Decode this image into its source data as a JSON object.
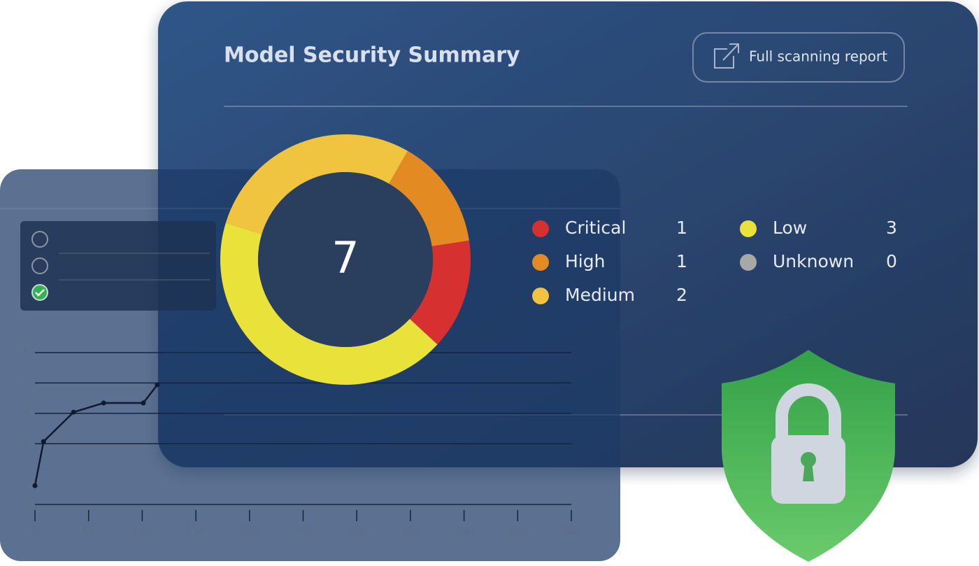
{
  "card": {
    "title": "Model Security Summary",
    "button": "Full scanning report",
    "total": 7,
    "severities": [
      {
        "name": "Critical",
        "count": 1,
        "color": "#d63031"
      },
      {
        "name": "High",
        "count": 1,
        "color": "#e48a22"
      },
      {
        "name": "Medium",
        "count": 2,
        "color": "#f0c43e"
      },
      {
        "name": "Low",
        "count": 3,
        "color": "#e8e23a"
      },
      {
        "name": "Unknown",
        "count": 0,
        "color": "#a8a8a8"
      }
    ]
  },
  "background_chart": {
    "type": "line",
    "x": [
      0,
      8,
      36,
      64,
      101,
      114
    ],
    "values": [
      0.62,
      2.07,
      3.04,
      3.34,
      3.34,
      3.94
    ],
    "xlim": [
      0,
      500
    ],
    "ylim": [
      0,
      5
    ],
    "xticks": [
      0,
      50,
      100,
      150,
      200,
      250,
      300,
      350,
      400,
      450,
      500
    ],
    "yticks": [
      0,
      2,
      3,
      4,
      5
    ]
  }
}
